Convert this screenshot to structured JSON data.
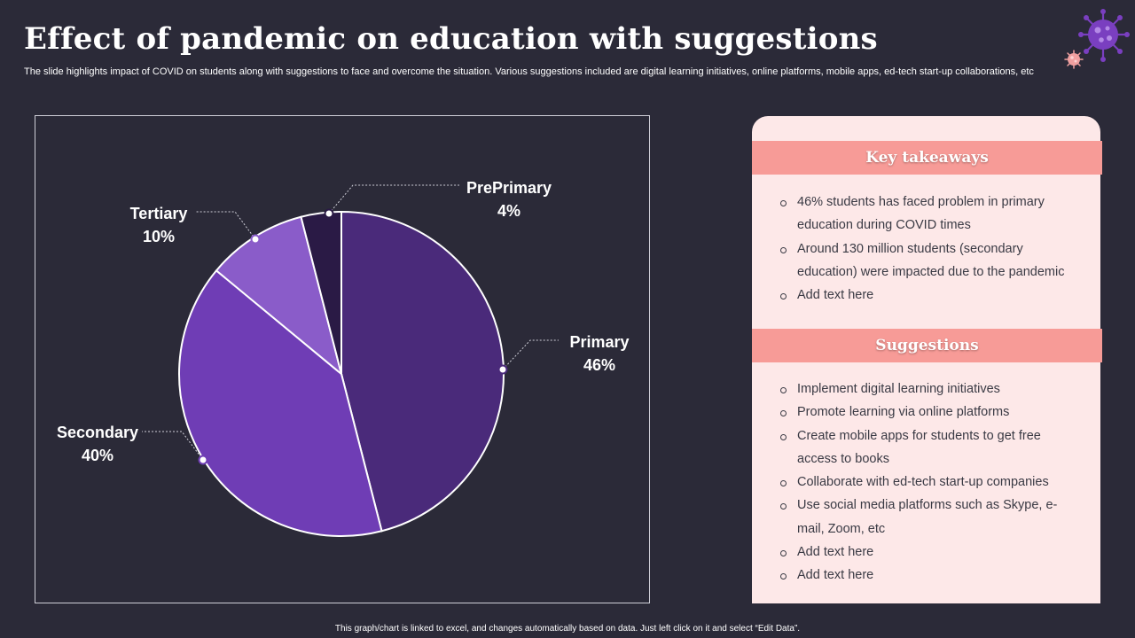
{
  "header": {
    "title": "Effect of pandemic on education with suggestions",
    "subtitle": "The slide highlights impact of COVID on students along with suggestions to face and overcome the situation. Various suggestions included are digital learning initiatives, online platforms, mobile apps, ed-tech start-up collaborations, etc"
  },
  "icons": {
    "decoration": "virus-icon"
  },
  "chart_data": {
    "type": "pie",
    "title": "",
    "series": [
      {
        "name": "Primary",
        "value": 46,
        "label": "46%",
        "color": "#4a2a7a"
      },
      {
        "name": "Secondary",
        "value": 40,
        "label": "40%",
        "color": "#6f3db5"
      },
      {
        "name": "Tertiary",
        "value": 10,
        "label": "10%",
        "color": "#8a5cc9"
      },
      {
        "name": "PrePrimary",
        "value": 4,
        "label": "4%",
        "color": "#2a1a45"
      }
    ],
    "start_angle_deg": 0,
    "direction": "clockwise",
    "slice_border_color": "#ffffff"
  },
  "panel": {
    "takeaways_title": "Key takeaways",
    "takeaways": [
      "46% students has faced problem in primary education during COVID times",
      "Around 130 million students (secondary education) were impacted due to the pandemic",
      "Add text here"
    ],
    "suggestions_title": "Suggestions",
    "suggestions": [
      "Implement digital learning initiatives",
      "Promote learning via online platforms",
      "Create mobile apps for students to get free access to books",
      "Collaborate with ed-tech start-up companies",
      "Use social media platforms such as Skype, e-mail, Zoom, etc",
      "Add text here",
      "Add text here"
    ],
    "header_color": "#f79b97",
    "background_color": "#fde8e8"
  },
  "footer": {
    "note": "This graph/chart is linked to excel, and changes automatically based on data. Just left click on it and select “Edit Data”."
  }
}
